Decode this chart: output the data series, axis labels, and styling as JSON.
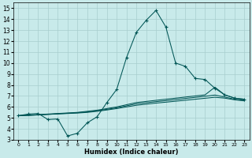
{
  "xlabel": "Humidex (Indice chaleur)",
  "bg_color": "#c8eaea",
  "grid_color": "#a8cece",
  "line_color": "#005555",
  "xlim": [
    -0.5,
    23.5
  ],
  "ylim": [
    3.0,
    15.5
  ],
  "yticks": [
    3,
    4,
    5,
    6,
    7,
    8,
    9,
    10,
    11,
    12,
    13,
    14,
    15
  ],
  "xticks": [
    0,
    1,
    2,
    3,
    4,
    5,
    6,
    7,
    8,
    9,
    10,
    11,
    12,
    13,
    14,
    15,
    16,
    17,
    18,
    19,
    20,
    21,
    22,
    23
  ],
  "main_x": [
    0,
    1,
    2,
    3,
    4,
    5,
    6,
    7,
    8,
    9,
    10,
    11,
    12,
    13,
    14,
    15,
    16,
    17,
    18,
    19,
    20,
    21,
    22,
    23
  ],
  "main_y": [
    5.2,
    5.35,
    5.4,
    4.85,
    4.9,
    3.35,
    3.6,
    4.55,
    5.1,
    6.4,
    7.6,
    10.5,
    12.8,
    13.9,
    14.8,
    13.3,
    10.0,
    9.7,
    8.6,
    8.5,
    7.7,
    7.1,
    6.8,
    6.7
  ],
  "curve2_x": [
    0,
    1,
    2,
    3,
    4,
    5,
    6,
    7,
    8,
    9,
    10,
    11,
    12,
    13,
    14,
    15,
    16,
    17,
    18,
    19,
    20,
    21,
    22,
    23
  ],
  "curve2_y": [
    5.2,
    5.25,
    5.3,
    5.35,
    5.4,
    5.45,
    5.5,
    5.6,
    5.7,
    5.85,
    6.0,
    6.2,
    6.4,
    6.5,
    6.6,
    6.7,
    6.8,
    6.9,
    7.0,
    7.1,
    7.8,
    7.1,
    6.8,
    6.7
  ],
  "curve3_x": [
    0,
    1,
    2,
    3,
    4,
    5,
    6,
    7,
    8,
    9,
    10,
    11,
    12,
    13,
    14,
    15,
    16,
    17,
    18,
    19,
    20,
    21,
    22,
    23
  ],
  "curve3_y": [
    5.2,
    5.22,
    5.27,
    5.32,
    5.37,
    5.42,
    5.47,
    5.55,
    5.65,
    5.78,
    5.92,
    6.1,
    6.28,
    6.38,
    6.48,
    6.57,
    6.67,
    6.77,
    6.87,
    6.97,
    7.08,
    6.9,
    6.7,
    6.6
  ],
  "curve4_x": [
    0,
    1,
    2,
    3,
    4,
    5,
    6,
    7,
    8,
    9,
    10,
    11,
    12,
    13,
    14,
    15,
    16,
    17,
    18,
    19,
    20,
    21,
    22,
    23
  ],
  "curve4_y": [
    5.2,
    5.24,
    5.28,
    5.32,
    5.36,
    5.4,
    5.44,
    5.5,
    5.6,
    5.72,
    5.85,
    6.0,
    6.15,
    6.25,
    6.35,
    6.43,
    6.52,
    6.61,
    6.7,
    6.79,
    6.88,
    6.8,
    6.65,
    6.55
  ]
}
